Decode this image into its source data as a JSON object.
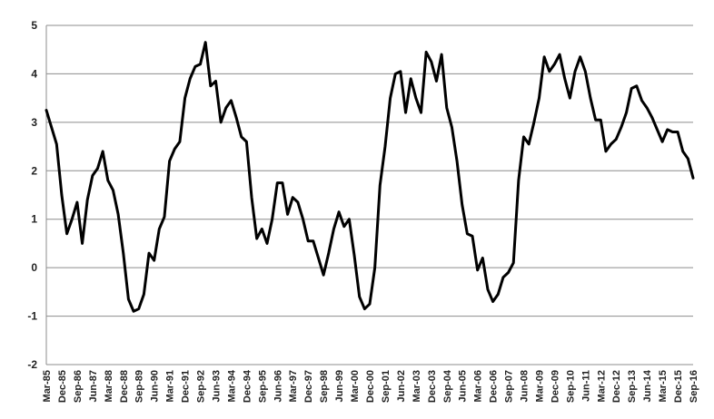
{
  "chart_data": {
    "type": "line",
    "title": "",
    "xlabel": "",
    "ylabel": "",
    "ylim": [
      -2,
      5
    ],
    "y_ticks": [
      5,
      4,
      3,
      2,
      1,
      0,
      -1,
      -2
    ],
    "grid": "horizontal",
    "legend": "none",
    "x_tick_labels": [
      "Mar-85",
      "Dec-85",
      "Sep-86",
      "Jun-87",
      "Mar-88",
      "Dec-88",
      "Sep-89",
      "Jun-90",
      "Mar-91",
      "Dec-91",
      "Sep-92",
      "Jun-93",
      "Mar-94",
      "Dec-94",
      "Sep-95",
      "Jun-96",
      "Mar-97",
      "Dec-97",
      "Sep-98",
      "Jun-99",
      "Mar-00",
      "Dec-00",
      "Sep-01",
      "Jun-02",
      "Mar-03",
      "Dec-03",
      "Sep-04",
      "Jun-05",
      "Mar-06",
      "Dec-06",
      "Sep-07",
      "Jun-08",
      "Mar-09",
      "Dec-09",
      "Sep-10",
      "Jun-11",
      "Mar-12",
      "Dec-12",
      "Sep-13",
      "Jun-14",
      "Mar-15",
      "Dec-15",
      "Sep-16"
    ],
    "series": [
      {
        "color": "#000000",
        "values": [
          3.25,
          2.9,
          2.55,
          1.5,
          0.7,
          1.0,
          1.35,
          0.5,
          1.4,
          1.9,
          2.05,
          2.4,
          1.8,
          1.6,
          1.1,
          0.3,
          -0.65,
          -0.9,
          -0.85,
          -0.55,
          0.3,
          0.15,
          0.8,
          1.05,
          2.2,
          2.45,
          2.6,
          3.5,
          3.9,
          4.15,
          4.2,
          4.65,
          3.75,
          3.85,
          3.0,
          3.3,
          3.45,
          3.1,
          2.7,
          2.6,
          1.45,
          0.6,
          0.8,
          0.5,
          1.0,
          1.75,
          1.75,
          1.1,
          1.45,
          1.35,
          1.0,
          0.55,
          0.55,
          0.2,
          -0.15,
          0.3,
          0.8,
          1.15,
          0.85,
          1.0,
          0.25,
          -0.6,
          -0.85,
          -0.75,
          0.0,
          1.7,
          2.5,
          3.5,
          4.0,
          4.05,
          3.2,
          3.9,
          3.5,
          3.2,
          4.45,
          4.25,
          3.85,
          4.4,
          3.3,
          2.9,
          2.2,
          1.3,
          0.7,
          0.65,
          -0.05,
          0.2,
          -0.45,
          -0.7,
          -0.55,
          -0.2,
          -0.1,
          0.1,
          1.8,
          2.7,
          2.55,
          3.0,
          3.5,
          4.35,
          4.05,
          4.2,
          4.4,
          3.9,
          3.5,
          4.05,
          4.35,
          4.05,
          3.5,
          3.05,
          3.05,
          2.4,
          2.55,
          2.65,
          2.9,
          3.2,
          3.7,
          3.75,
          3.45,
          3.3,
          3.1,
          2.85,
          2.6,
          2.85,
          2.8,
          2.8,
          2.4,
          2.25,
          1.85
        ]
      }
    ]
  }
}
